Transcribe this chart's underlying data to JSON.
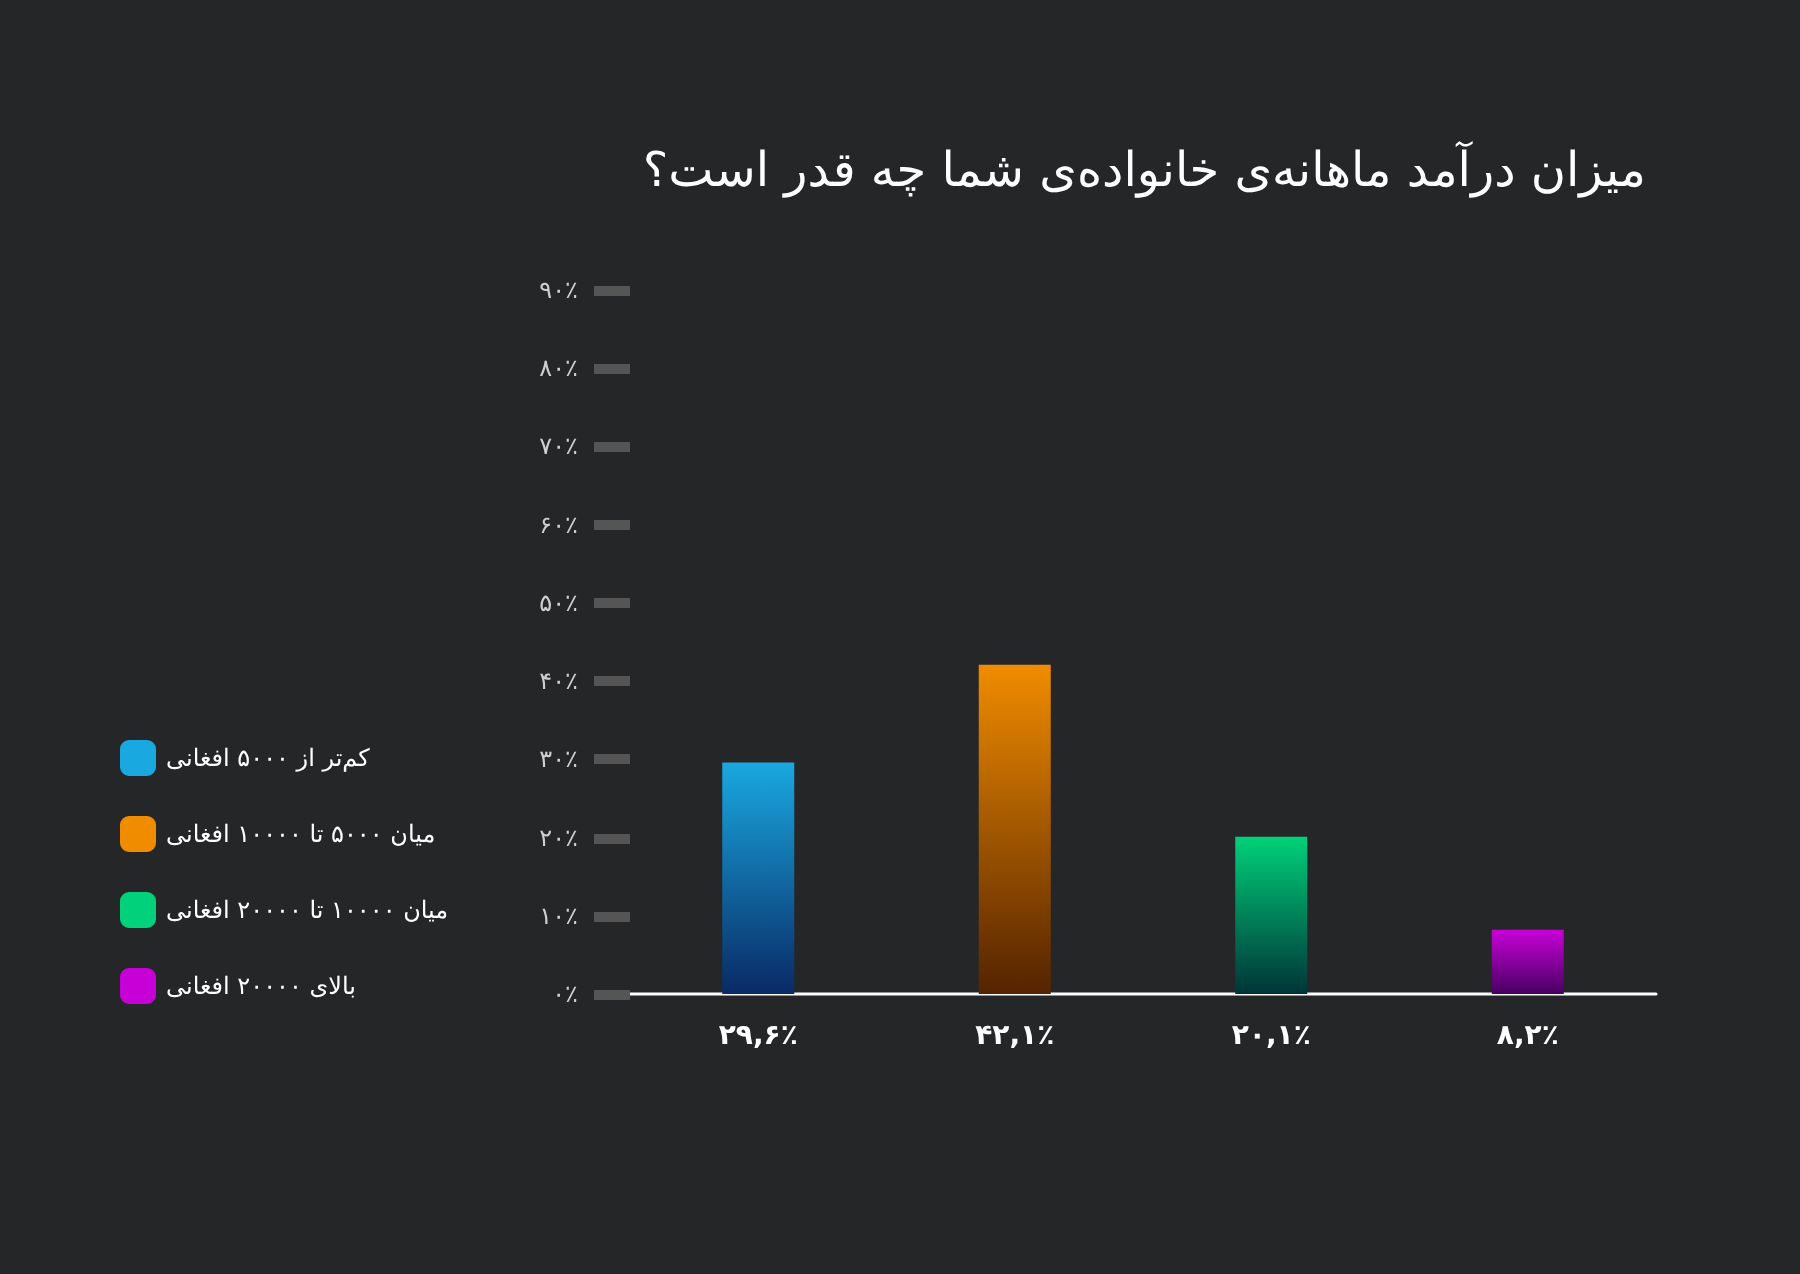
{
  "chart_data": {
    "type": "bar",
    "title": "میزان درآمد ماهانه‌ی خانواده‌ی شما چه قدر است؟",
    "categories": [
      null,
      null,
      null,
      null
    ],
    "stacked": true,
    "series": [
      {
        "name": "کم‌تر از ۵۰۰۰ افغانی",
        "color": "#1aa8e0",
        "values": [
          29.6,
          null,
          null,
          null
        ],
        "value_labels": [
          "۲۹,۶٪",
          null,
          null,
          null
        ]
      },
      {
        "name": "میان ۵۰۰۰ تا ۱۰۰۰۰ افغانی",
        "color": "#f08c00",
        "values": [
          null,
          42.1,
          null,
          null
        ],
        "value_labels": [
          null,
          "۴۲,۱٪",
          null,
          null
        ]
      },
      {
        "name": "میان ۱۰۰۰۰ تا ۲۰۰۰۰ افغانی",
        "color": "#00d17a",
        "values": [
          null,
          null,
          20.1,
          null
        ],
        "value_labels": [
          null,
          null,
          "۲۰,۱٪",
          null
        ]
      },
      {
        "name": "بالای ۲۰۰۰۰ افغانی",
        "color": "#c800d8",
        "values": [
          null,
          null,
          null,
          8.2
        ],
        "value_labels": [
          null,
          null,
          null,
          "۸,۲٪"
        ]
      }
    ],
    "ylim": [
      0,
      90
    ],
    "yticks": [
      {
        "value": 0,
        "label": "۰٪"
      },
      {
        "value": 10,
        "label": "۱۰٪"
      },
      {
        "value": 20,
        "label": "۲۰٪"
      },
      {
        "value": 30,
        "label": "۳۰٪"
      },
      {
        "value": 40,
        "label": "۴۰٪"
      },
      {
        "value": 50,
        "label": "۵۰٪"
      },
      {
        "value": 60,
        "label": "۶۰٪"
      },
      {
        "value": 70,
        "label": "۷۰٪"
      },
      {
        "value": 80,
        "label": "۸۰٪"
      },
      {
        "value": 90,
        "label": "۹۰٪"
      }
    ],
    "grid": false,
    "legend": "left"
  }
}
